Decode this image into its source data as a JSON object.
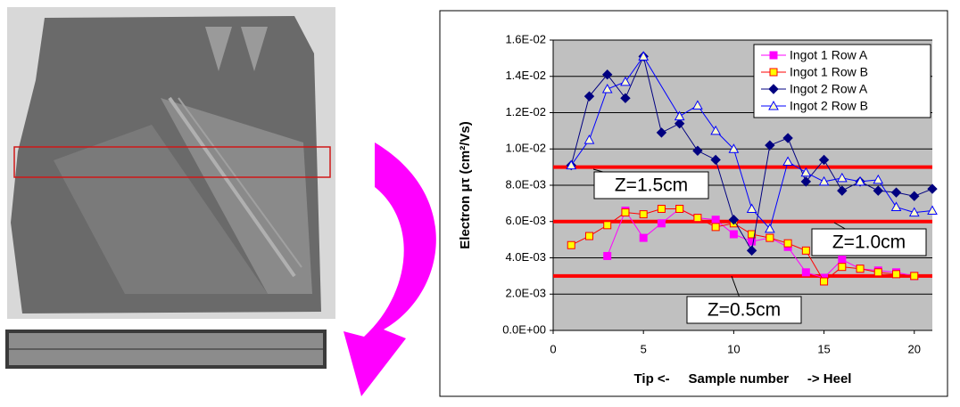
{
  "chart_data": {
    "type": "line",
    "y_label": "Electron μτ (cm²/Vs)",
    "x_label": "Tip <-     Sample number     -> Heel",
    "xlim": [
      0,
      21
    ],
    "xticks": [
      0,
      5,
      10,
      15,
      20
    ],
    "ylim": [
      0,
      0.016
    ],
    "yticks": [
      {
        "value": 0,
        "label": "0.0E+00"
      },
      {
        "value": 0.002,
        "label": "2.0E-03"
      },
      {
        "value": 0.004,
        "label": "4.0E-03"
      },
      {
        "value": 0.006,
        "label": "6.0E-03"
      },
      {
        "value": 0.008,
        "label": "8.0E-03"
      },
      {
        "value": 0.01,
        "label": "1.0E-02"
      },
      {
        "value": 0.012,
        "label": "1.2E-02"
      },
      {
        "value": 0.014,
        "label": "1.4E-02"
      },
      {
        "value": 0.016,
        "label": "1.6E-02"
      }
    ],
    "grid": true,
    "legend": "top-right",
    "series": [
      {
        "name": "Ingot 1 Row A",
        "color": "#ff00ff",
        "marker": "square",
        "marker_fill": "#ff00ff",
        "x": [
          3,
          4,
          5,
          6,
          7,
          8,
          9,
          10,
          11,
          12,
          13,
          14,
          15,
          16,
          17,
          18,
          19,
          20
        ],
        "values": [
          0.0041,
          0.0066,
          0.0051,
          0.0059,
          0.0067,
          0.0062,
          0.0061,
          0.0053,
          0.0049,
          0.0051,
          0.0046,
          0.0032,
          0.0029,
          0.0039,
          0.0034,
          0.0033,
          0.0032,
          0.003
        ]
      },
      {
        "name": "Ingot 1 Row B",
        "color": "#ff0000",
        "marker": "square",
        "marker_fill": "#ffff00",
        "x": [
          1,
          2,
          3,
          4,
          5,
          6,
          7,
          8,
          9,
          10,
          11,
          12,
          13,
          14,
          15,
          16,
          17,
          18,
          19,
          20
        ],
        "values": [
          0.0047,
          0.0052,
          0.0058,
          0.0065,
          0.0064,
          0.0067,
          0.0067,
          0.0062,
          0.0057,
          0.0059,
          0.0053,
          0.0051,
          0.0048,
          0.0044,
          0.0027,
          0.0035,
          0.0034,
          0.0032,
          0.0031,
          0.003
        ]
      },
      {
        "name": "Ingot 2 Row A",
        "color": "#000080",
        "marker": "diamond",
        "marker_fill": "#000080",
        "x": [
          1,
          2,
          3,
          4,
          5,
          6,
          7,
          8,
          9,
          10,
          11,
          12,
          13,
          14,
          15,
          16,
          17,
          18,
          19,
          20,
          21
        ],
        "values": [
          0.0091,
          0.0129,
          0.0141,
          0.0128,
          0.0151,
          0.0109,
          0.0114,
          0.0099,
          0.0094,
          0.0061,
          0.0044,
          0.0102,
          0.0106,
          0.0082,
          0.0094,
          0.0077,
          0.0082,
          0.0077,
          0.0076,
          0.0074,
          0.0078
        ]
      },
      {
        "name": "Ingot 2 Row B",
        "color": "#0000ff",
        "marker": "triangle",
        "marker_fill": "#ffffcc",
        "x": [
          1,
          2,
          3,
          4,
          5,
          7,
          8,
          9,
          10,
          11,
          12,
          13,
          14,
          15,
          16,
          17,
          18,
          19,
          20,
          21
        ],
        "values": [
          0.0091,
          0.0105,
          0.0133,
          0.0137,
          0.0151,
          0.0118,
          0.0124,
          0.011,
          0.01,
          0.0067,
          0.0056,
          0.0093,
          0.0087,
          0.0082,
          0.0084,
          0.0082,
          0.0083,
          0.0068,
          0.0065,
          0.0066
        ]
      }
    ],
    "reference_lines": [
      {
        "value": 0.009,
        "label": "Z=1.5cm",
        "color": "#ff0000"
      },
      {
        "value": 0.006,
        "label": "Z=1.0cm",
        "color": "#ff0000"
      },
      {
        "value": 0.003,
        "label": "Z=0.5cm",
        "color": "#ff0000"
      }
    ]
  }
}
